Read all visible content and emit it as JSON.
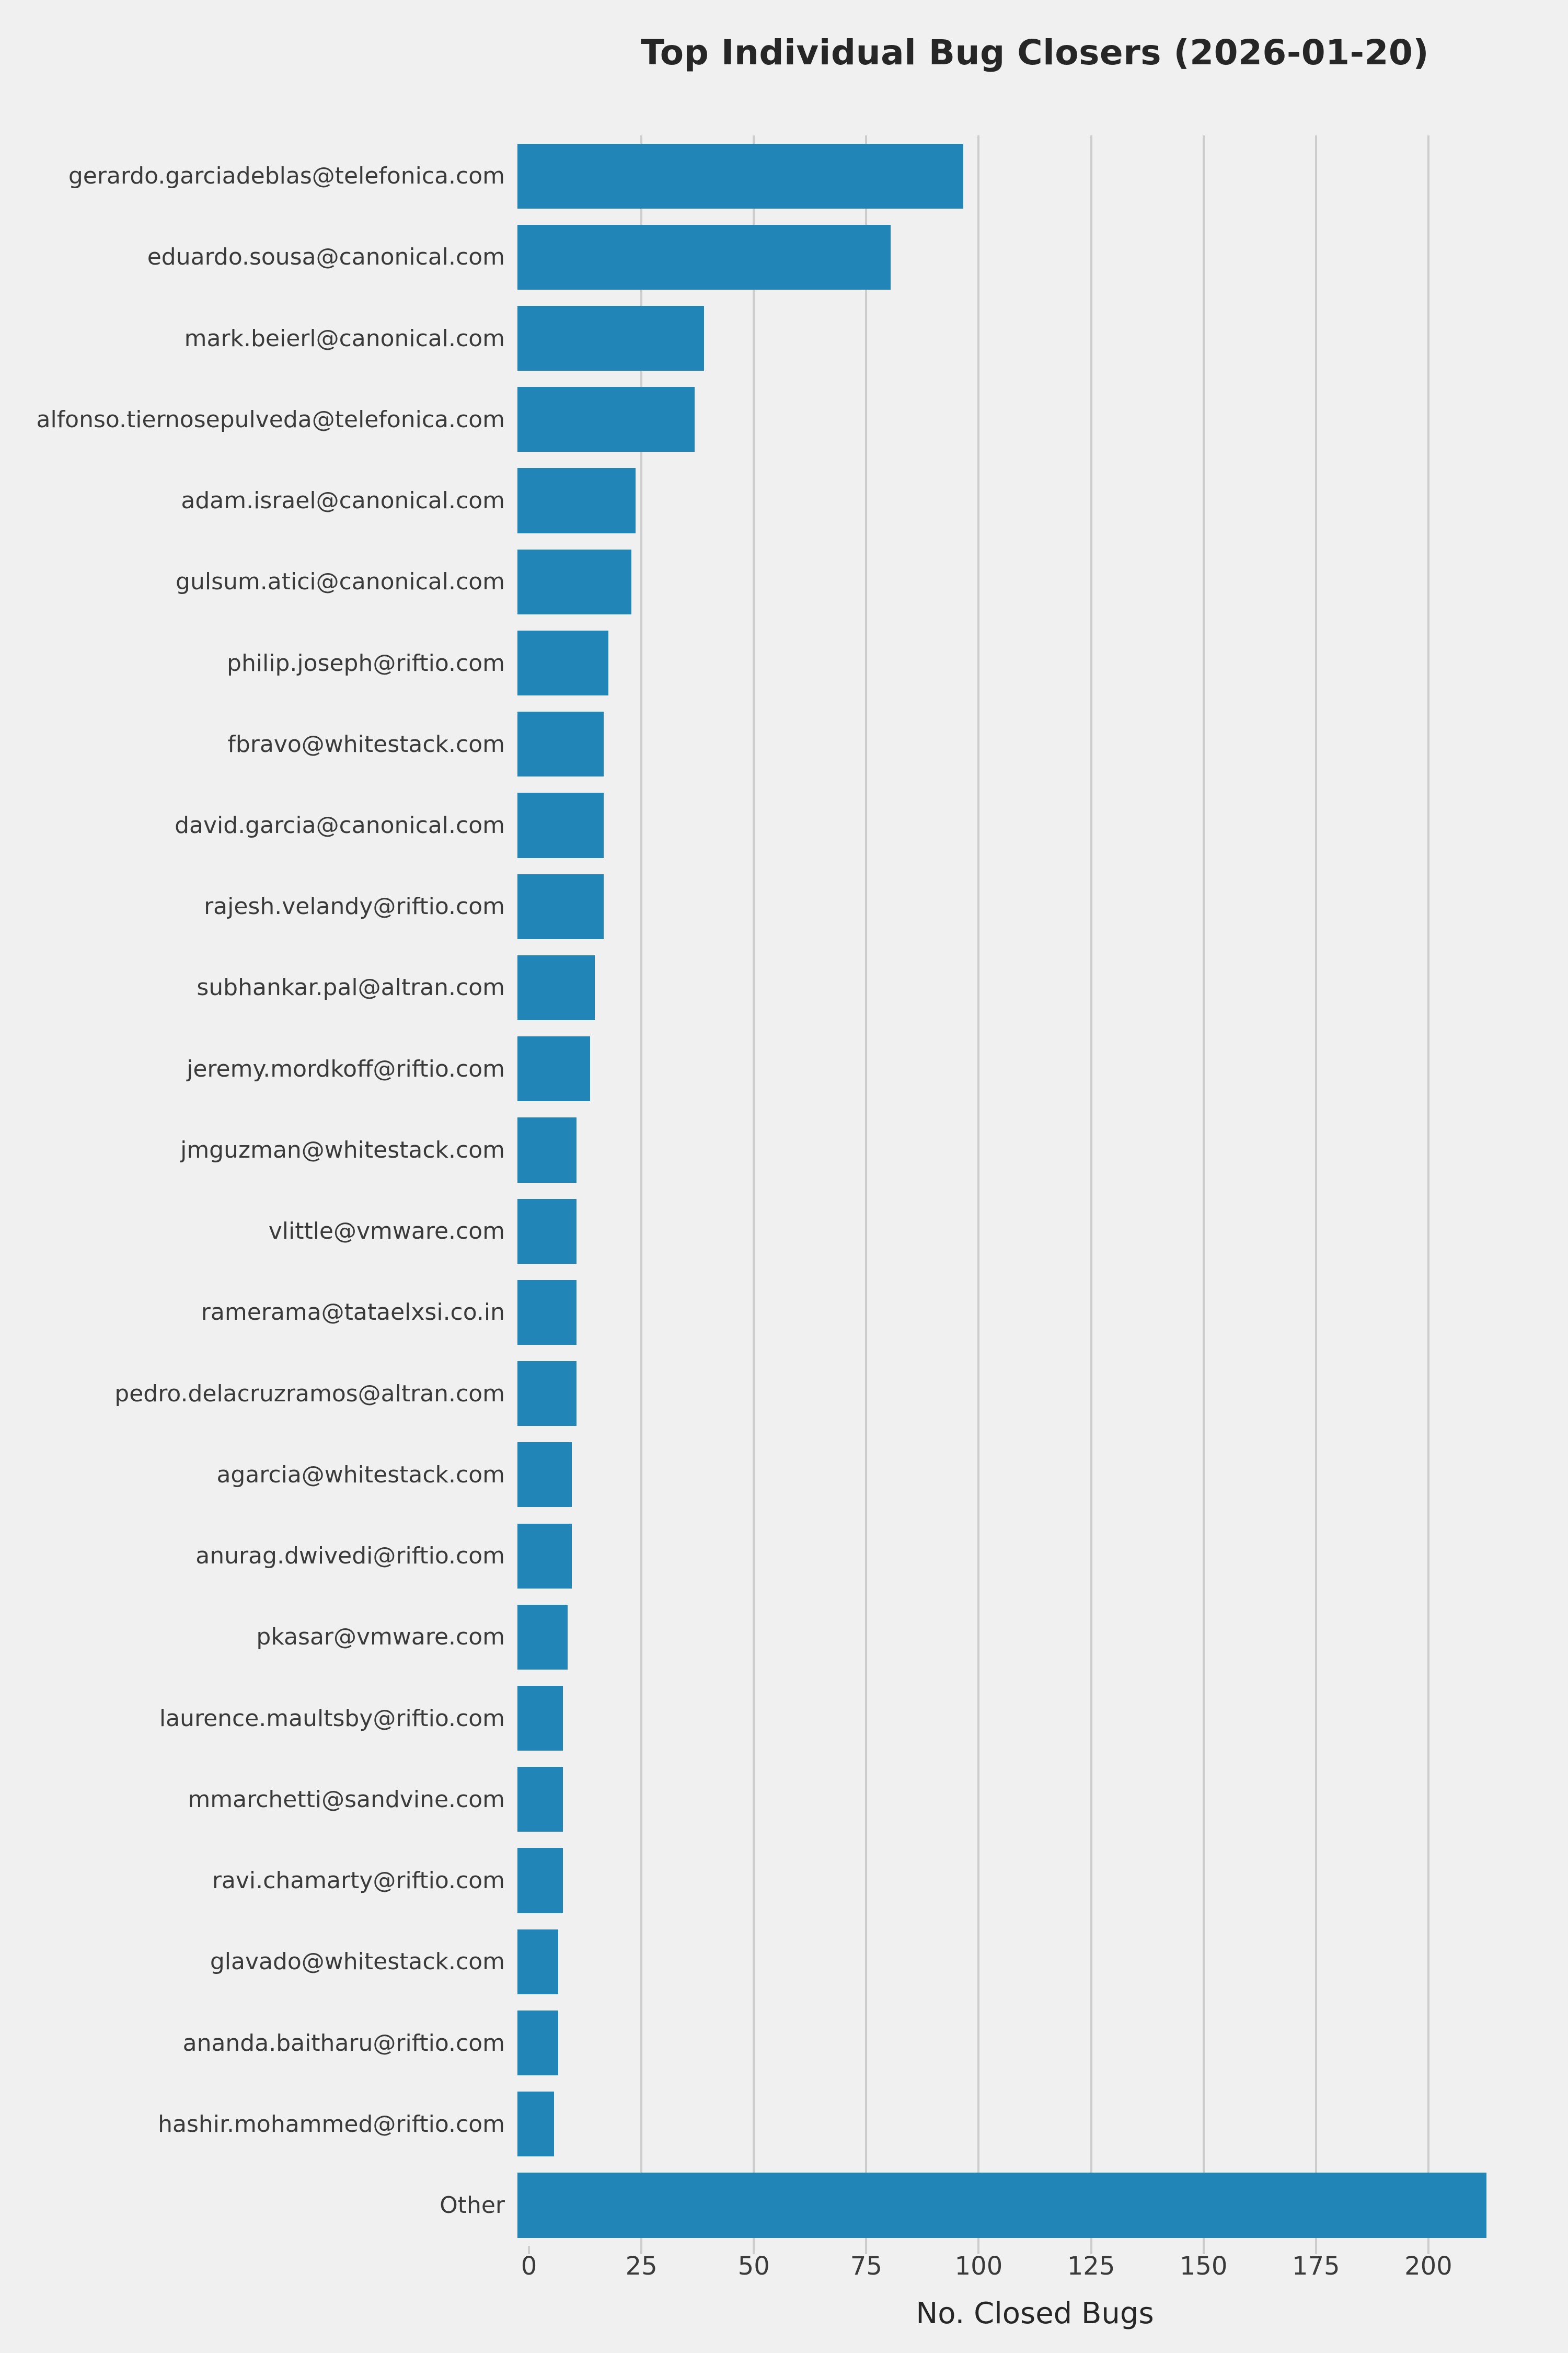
{
  "chart_data": {
    "type": "bar",
    "orientation": "horizontal",
    "title": "Top Individual Bug Closers (2026-01-20)",
    "xlabel": "No. Closed Bugs",
    "ylabel": "",
    "xlim": [
      0,
      225
    ],
    "xticks": [
      0,
      25,
      50,
      75,
      100,
      125,
      150,
      175,
      200
    ],
    "grid": true,
    "legend": "none",
    "categories": [
      "gerardo.garciadeblas@telefonica.com",
      "eduardo.sousa@canonical.com",
      "mark.beierl@canonical.com",
      "alfonso.tiernosepulveda@telefonica.com",
      "adam.israel@canonical.com",
      "gulsum.atici@canonical.com",
      "philip.joseph@riftio.com",
      "fbravo@whitestack.com",
      "david.garcia@canonical.com",
      "rajesh.velandy@riftio.com",
      "subhankar.pal@altran.com",
      "jeremy.mordkoff@riftio.com",
      "jmguzman@whitestack.com",
      "vlittle@vmware.com",
      "ramerama@tataelxsi.co.in",
      "pedro.delacruzramos@altran.com",
      "agarcia@whitestack.com",
      "anurag.dwivedi@riftio.com",
      "pkasar@vmware.com",
      "laurence.maultsby@riftio.com",
      "mmarchetti@sandvine.com",
      "ravi.chamarty@riftio.com",
      "glavado@whitestack.com",
      "ananda.baitharu@riftio.com",
      "hashir.mohammed@riftio.com",
      "Other"
    ],
    "values": [
      98,
      82,
      41,
      39,
      26,
      25,
      20,
      19,
      19,
      19,
      17,
      16,
      13,
      13,
      13,
      13,
      12,
      12,
      11,
      10,
      10,
      10,
      9,
      9,
      8,
      213
    ],
    "colors": {
      "bar": "#2185b8",
      "background": "#f0f0f0",
      "gridline": "#cdcdcd",
      "text": "#3a3a3a"
    }
  }
}
